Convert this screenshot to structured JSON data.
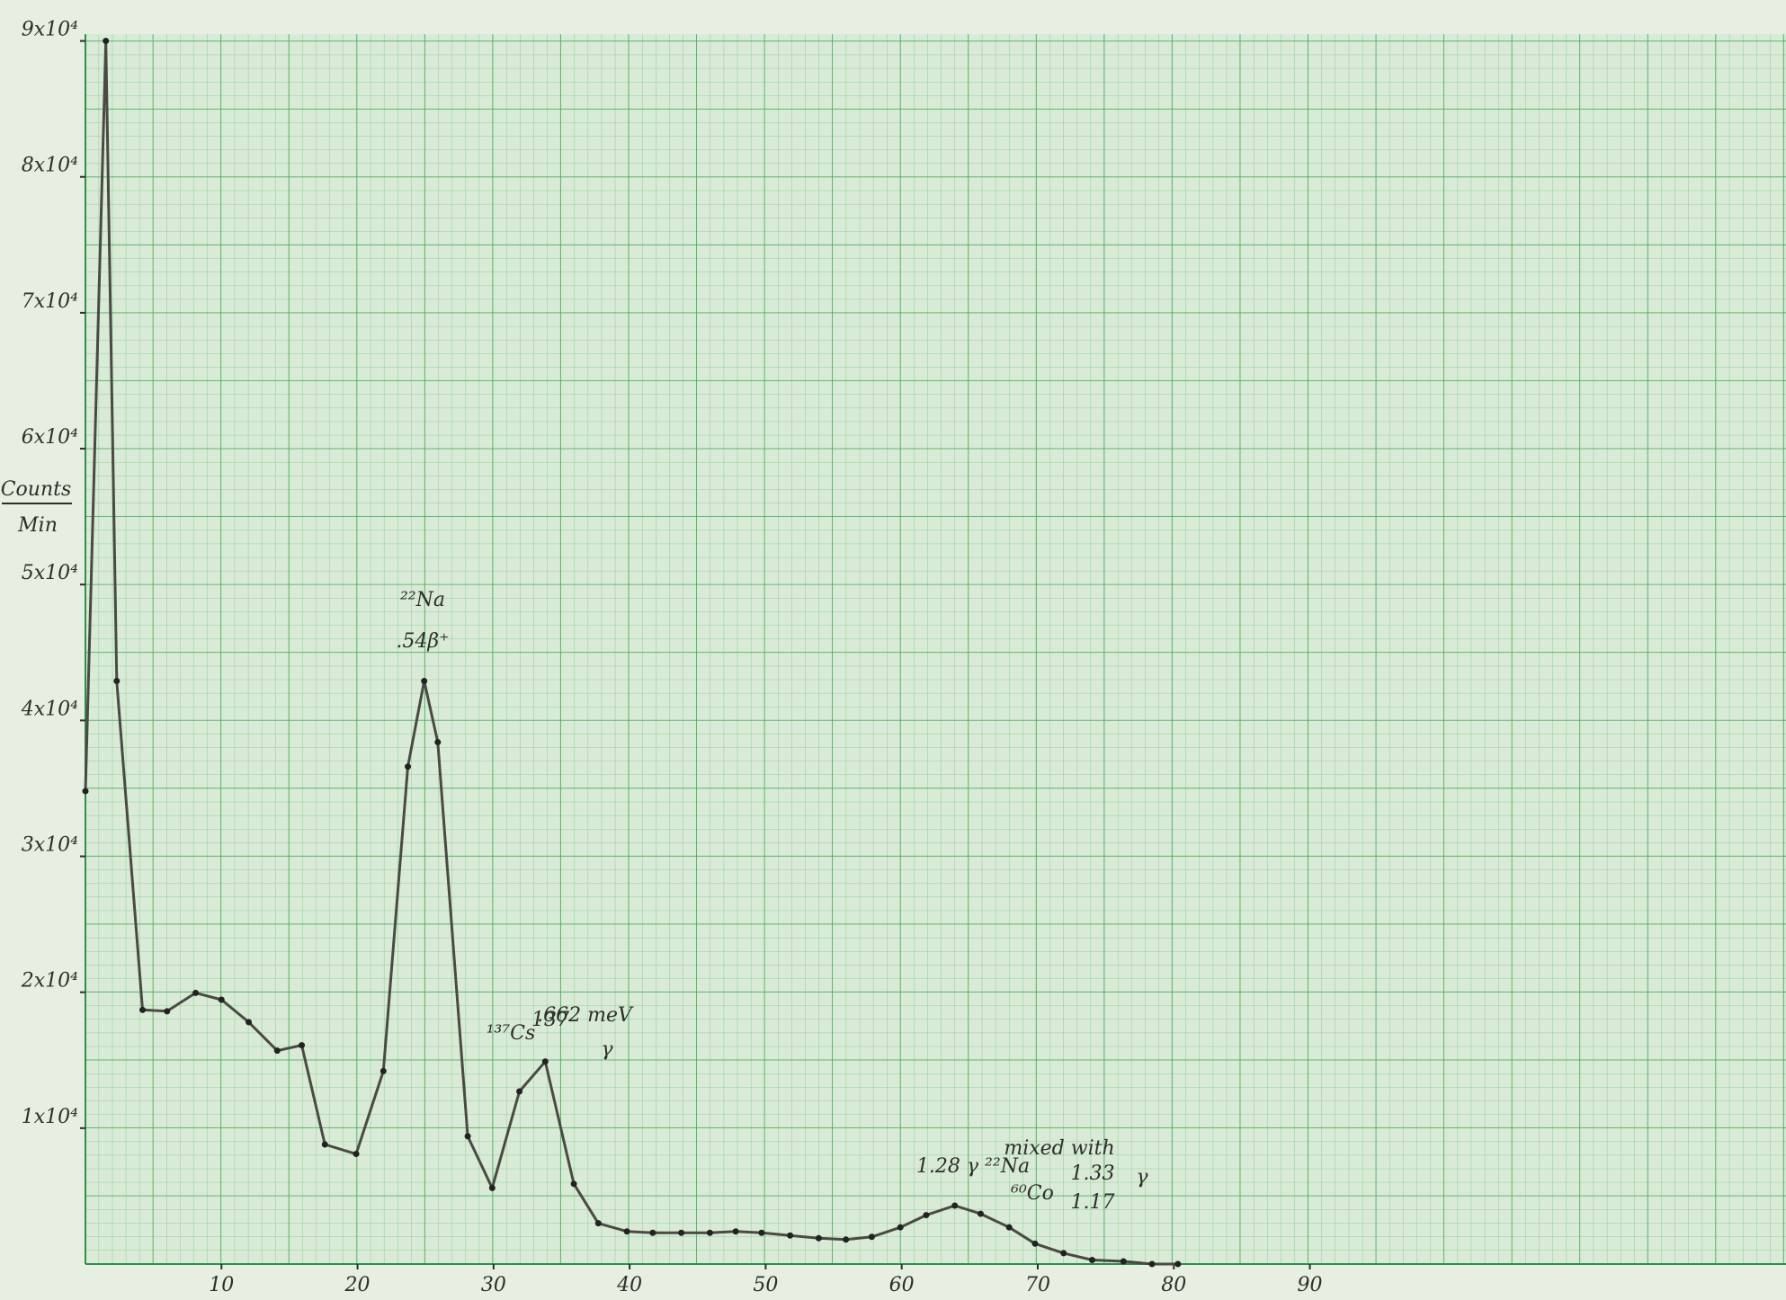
{
  "chart_data": {
    "type": "line",
    "ylabel": [
      "Counts",
      "Min"
    ],
    "color": "#4a4a42",
    "x": [
      0,
      1.5,
      2.3,
      4.2,
      6,
      8.1,
      10,
      12,
      14.1,
      15.9,
      17.6,
      19.9,
      21.9,
      23.7,
      24.9,
      25.9,
      28.1,
      29.9,
      31.9,
      33.8,
      35.9,
      37.7,
      39.8,
      41.7,
      43.8,
      45.9,
      47.8,
      49.7,
      51.8,
      53.9,
      55.9,
      57.8,
      59.9,
      61.8,
      63.9,
      65.8,
      67.9,
      69.8,
      71.9,
      74,
      76.3,
      78.4,
      80.3
    ],
    "values": [
      34800,
      90000,
      42900,
      18700,
      18600,
      19950,
      19450,
      17800,
      15700,
      16100,
      8800,
      8100,
      14200,
      36600,
      42900,
      38400,
      9400,
      5600,
      12700,
      14900,
      5900,
      3000,
      2400,
      2300,
      2300,
      2300,
      2400,
      2300,
      2100,
      1900,
      1800,
      2000,
      2700,
      3600,
      4300,
      3700,
      2700,
      1500,
      800,
      300,
      200,
      0,
      0
    ],
    "xlim": [
      0,
      125
    ],
    "ylim": [
      0,
      90500
    ],
    "xticks": [
      10,
      20,
      30,
      40,
      50,
      60,
      70,
      80,
      90
    ],
    "yticks": [
      {
        "value": 10000,
        "label": "1x10⁴"
      },
      {
        "value": 20000,
        "label": "2x10⁴"
      },
      {
        "value": 30000,
        "label": "3x10⁴"
      },
      {
        "value": 40000,
        "label": "4x10⁴"
      },
      {
        "value": 50000,
        "label": "5x10⁴"
      },
      {
        "value": 60000,
        "label": "6x10⁴"
      },
      {
        "value": 70000,
        "label": "7x10⁴"
      },
      {
        "value": 80000,
        "label": "8x10⁴"
      },
      {
        "value": 90000,
        "label": "9x10⁴"
      }
    ],
    "annotations": [
      "²²Na",
      ".54β⁺",
      "¹³⁷Cs",
      "137",
      ".662 meV",
      "γ",
      "1.28 γ ²²Na",
      "mixed with",
      "⁶⁰Co",
      "1.33",
      "1.17",
      "γ"
    ]
  }
}
